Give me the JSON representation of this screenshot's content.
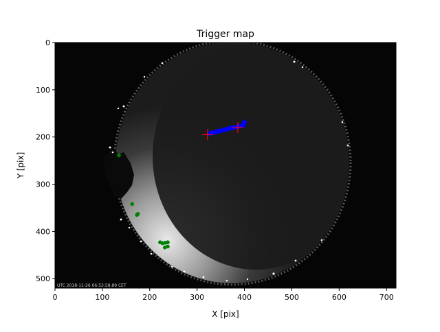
{
  "figure": {
    "title": "Trigger map",
    "xlabel": "X [pix]",
    "ylabel": "Y [pix]",
    "timestamp_overlay": "UTC 2018-11-26 06:53:58.89 CET"
  },
  "chart_data": {
    "type": "scatter",
    "background": "all-sky camera image (fisheye), dark sky with bright horizon glow on lower-left",
    "title": "Trigger map",
    "xlabel": "X [pix]",
    "ylabel": "Y [pix]",
    "xlim": [
      0,
      720
    ],
    "ylim": [
      520,
      0
    ],
    "y_inverted": true,
    "xticks": [
      0,
      100,
      200,
      300,
      400,
      500,
      600,
      700
    ],
    "yticks": [
      0,
      100,
      200,
      300,
      400,
      500
    ],
    "grid": false,
    "colors": {
      "image_bg": "#050505",
      "sky_disk": "#1a1a1a",
      "trigger_track": "#0000ff",
      "track_cross": "#ff0000",
      "stars": "#008000"
    },
    "series": [
      {
        "marker": "blue-dot",
        "color": "#0000ff",
        "points": [
          [
            325,
            193
          ],
          [
            328,
            192
          ],
          [
            331,
            191
          ],
          [
            334,
            191
          ],
          [
            337,
            190
          ],
          [
            340,
            189
          ],
          [
            343,
            188
          ],
          [
            346,
            188
          ],
          [
            349,
            187
          ],
          [
            352,
            186
          ],
          [
            355,
            185
          ],
          [
            358,
            185
          ],
          [
            361,
            184
          ],
          [
            364,
            183
          ],
          [
            367,
            182
          ],
          [
            370,
            182
          ],
          [
            373,
            181
          ],
          [
            376,
            180
          ],
          [
            379,
            180
          ],
          [
            382,
            179
          ],
          [
            385,
            178
          ],
          [
            388,
            178
          ],
          [
            391,
            177
          ],
          [
            394,
            176
          ],
          [
            398,
            176
          ],
          [
            399,
            172
          ],
          [
            400,
            168
          ]
        ]
      },
      {
        "marker": "red-cross",
        "color": "#ff0000",
        "points": [
          [
            322,
            195
          ],
          [
            386,
            180
          ]
        ]
      },
      {
        "marker": "green-dot",
        "color": "#008000",
        "points": [
          [
            135,
            239
          ],
          [
            163,
            342
          ],
          [
            173,
            365
          ],
          [
            175,
            363
          ],
          [
            222,
            423
          ],
          [
            227,
            425
          ],
          [
            233,
            424
          ],
          [
            238,
            423
          ],
          [
            232,
            434
          ],
          [
            238,
            432
          ]
        ]
      }
    ]
  }
}
